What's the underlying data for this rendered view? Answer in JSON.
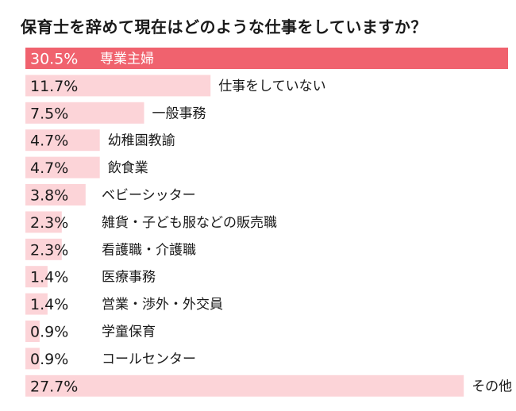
{
  "chart_data": {
    "type": "bar",
    "orientation": "horizontal",
    "title": "保育士を辞めて現在はどのような仕事をしていますか？",
    "categories": [
      "専業主婦",
      "仕事をしていない",
      "一般事務",
      "幼稚園教諭",
      "飲食業",
      "ベビーシッター",
      "雑貨・子ども服などの販売職",
      "看護職・介護職",
      "医療事務",
      "営業・渉外・外交員",
      "学童保育",
      "コールセンター",
      "その他"
    ],
    "values": [
      30.5,
      11.7,
      7.5,
      4.7,
      4.7,
      3.8,
      2.3,
      2.3,
      1.4,
      1.4,
      0.9,
      0.9,
      27.7
    ],
    "value_labels": [
      "30.5%",
      "11.7%",
      "7.5%",
      "4.7%",
      "4.7%",
      "3.8%",
      "2.3%",
      "2.3%",
      "1.4%",
      "1.4%",
      "0.9%",
      "0.9%",
      "27.7%"
    ],
    "unit": "%",
    "xlim": [
      0,
      30.5
    ],
    "grid": false,
    "legend": "none",
    "colors": {
      "highlight_bar": "#f0626e",
      "bar": "#fcd4d8",
      "text": "#1a1a1a",
      "text_on_highlight": "#ffffff"
    }
  }
}
